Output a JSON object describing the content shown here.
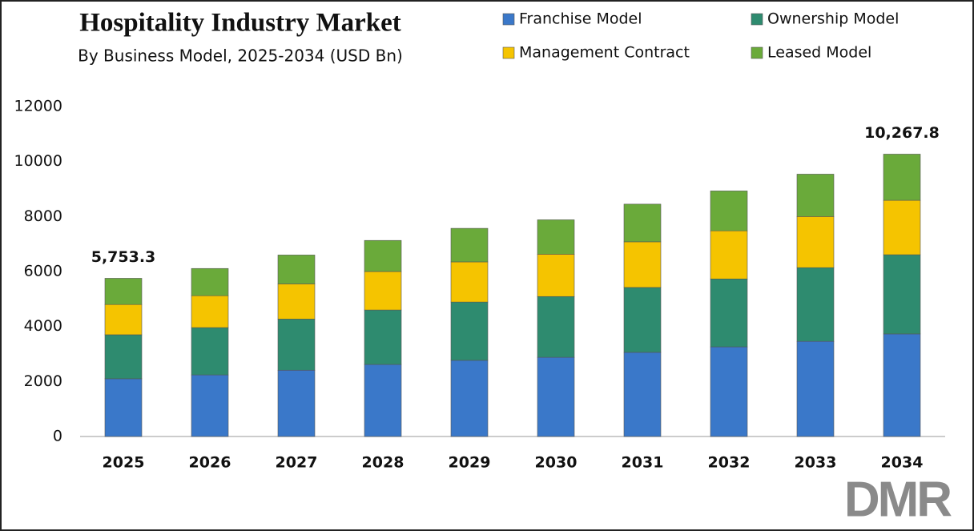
{
  "chart_data": {
    "type": "stacked-bar",
    "title": "Hospitality Industry Market",
    "subtitle": "By Business Model, 2025-2034 (USD Bn)",
    "categories": [
      "2025",
      "2026",
      "2027",
      "2028",
      "2029",
      "2030",
      "2031",
      "2032",
      "2033",
      "2034"
    ],
    "series": [
      {
        "name": "Franchise Model",
        "color": "#3a78c9",
        "values": [
          2100,
          2240,
          2410,
          2620,
          2770,
          2880,
          3060,
          3260,
          3460,
          3730
        ]
      },
      {
        "name": "Ownership Model",
        "color": "#2e8b6f",
        "values": [
          1600,
          1720,
          1860,
          1980,
          2120,
          2210,
          2360,
          2470,
          2680,
          2880
        ]
      },
      {
        "name": "Management Contract",
        "color": "#f5c400",
        "values": [
          1100,
          1160,
          1280,
          1400,
          1460,
          1540,
          1660,
          1750,
          1860,
          1980
        ]
      },
      {
        "name": "Leased Model",
        "color": "#6aaa3a",
        "values": [
          953.3,
          990,
          1050,
          1130,
          1220,
          1250,
          1370,
          1450,
          1540,
          1677.8
        ]
      }
    ],
    "annotations": [
      {
        "category": "2025",
        "value": 5753.3,
        "label": "5,753.3"
      },
      {
        "category": "2034",
        "value": 10267.8,
        "label": "10,267.8"
      }
    ],
    "ylim": [
      0,
      12000
    ],
    "yticks": [
      0,
      2000,
      4000,
      6000,
      8000,
      10000,
      12000
    ],
    "grid": false,
    "legend": "top-right",
    "logo": "DMR"
  }
}
